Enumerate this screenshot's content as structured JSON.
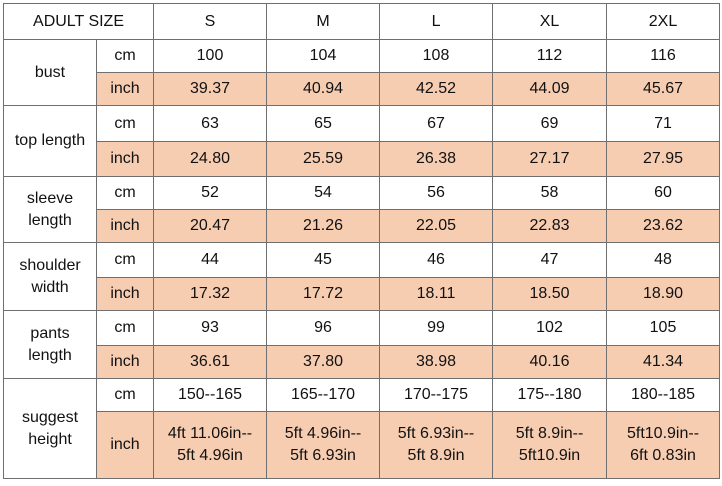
{
  "header": {
    "corner_label": "ADULT SIZE",
    "sizes": [
      "S",
      "M",
      "L",
      "XL",
      "2XL"
    ]
  },
  "colors": {
    "inch_row_fill": "#f7cdb2",
    "border": "#6f6f6f"
  },
  "measurements": [
    {
      "label": "bust",
      "rows": [
        {
          "unit": "cm",
          "values": [
            "100",
            "104",
            "108",
            "112",
            "116"
          ]
        },
        {
          "unit": "inch",
          "values": [
            "39.37",
            "40.94",
            "42.52",
            "44.09",
            "45.67"
          ]
        }
      ]
    },
    {
      "label": "top length",
      "rows": [
        {
          "unit": "cm",
          "values": [
            "63",
            "65",
            "67",
            "69",
            "71"
          ]
        },
        {
          "unit": "inch",
          "values": [
            "24.80",
            "25.59",
            "26.38",
            "27.17",
            "27.95"
          ]
        }
      ]
    },
    {
      "label": "sleeve length",
      "rows": [
        {
          "unit": "cm",
          "values": [
            "52",
            "54",
            "56",
            "58",
            "60"
          ]
        },
        {
          "unit": "inch",
          "values": [
            "20.47",
            "21.26",
            "22.05",
            "22.83",
            "23.62"
          ]
        }
      ]
    },
    {
      "label": "shoulder width",
      "rows": [
        {
          "unit": "cm",
          "values": [
            "44",
            "45",
            "46",
            "47",
            "48"
          ]
        },
        {
          "unit": "inch",
          "values": [
            "17.32",
            "17.72",
            "18.11",
            "18.50",
            "18.90"
          ]
        }
      ]
    },
    {
      "label": "pants length",
      "rows": [
        {
          "unit": "cm",
          "values": [
            "93",
            "96",
            "99",
            "102",
            "105"
          ]
        },
        {
          "unit": "inch",
          "values": [
            "36.61",
            "37.80",
            "38.98",
            "40.16",
            "41.34"
          ]
        }
      ]
    },
    {
      "label": "suggest height",
      "rows": [
        {
          "unit": "cm",
          "values": [
            "150--165",
            "165--170",
            "170--175",
            "175--180",
            "180--185"
          ]
        },
        {
          "unit": "inch",
          "values": [
            "4ft 11.06in--\n5ft 4.96in",
            "5ft 4.96in--\n5ft 6.93in",
            "5ft 6.93in--\n5ft 8.9in",
            "5ft 8.9in--\n5ft10.9in",
            "5ft10.9in--\n6ft 0.83in"
          ]
        }
      ]
    }
  ]
}
